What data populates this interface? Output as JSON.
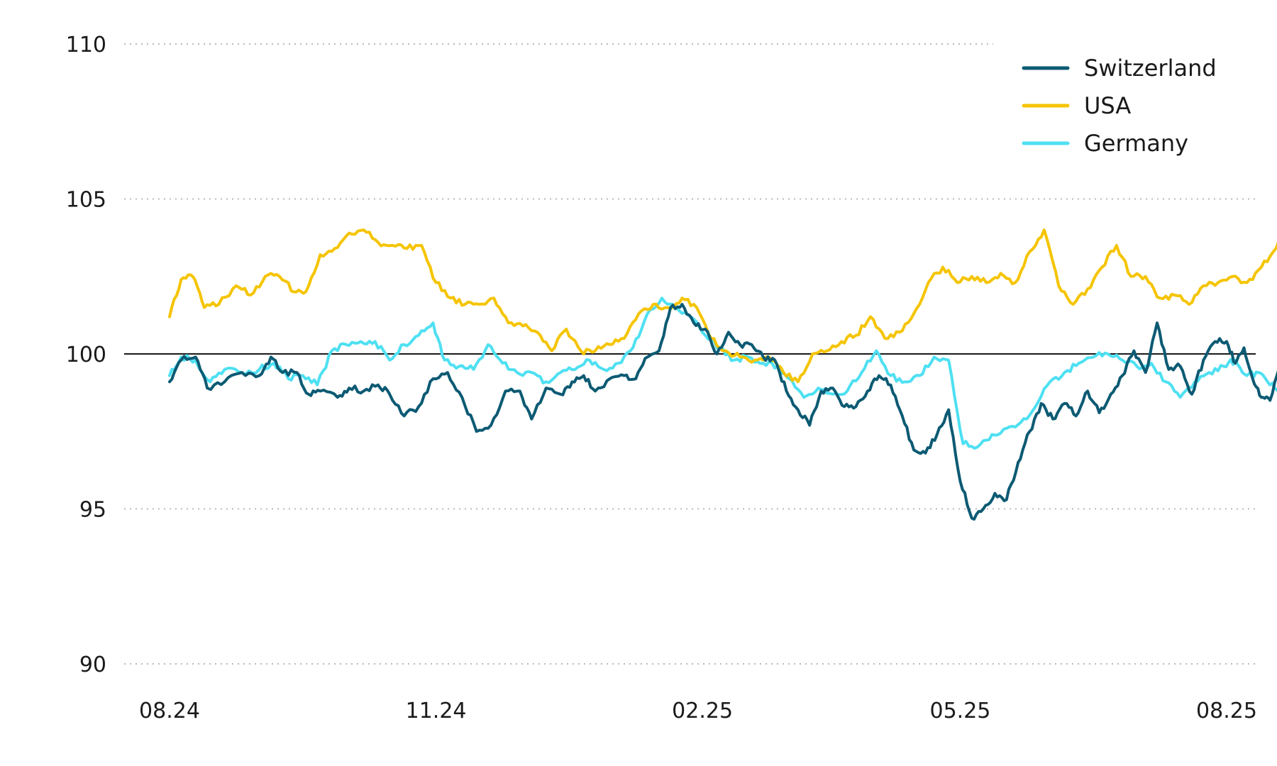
{
  "chart_data": {
    "type": "line",
    "title": "",
    "xlabel": "",
    "ylabel": "",
    "ylim": [
      90,
      110
    ],
    "yticks": [
      90,
      95,
      100,
      105,
      110
    ],
    "xlim": [
      "2024-08-01",
      "2025-08-20"
    ],
    "xticks": [
      {
        "label": "08.24",
        "date": "2024-08-01"
      },
      {
        "label": "11.24",
        "date": "2024-11-01"
      },
      {
        "label": "02.25",
        "date": "2025-02-01"
      },
      {
        "label": "05.25",
        "date": "2025-05-01"
      },
      {
        "label": "08.25",
        "date": "2025-08-01"
      }
    ],
    "reference_line": 100,
    "grid": "horizontal dotted",
    "legend": "top-right",
    "series": [
      {
        "name": "Switzerland",
        "color": "#0c5a73",
        "points": [
          [
            "2024-08-01",
            99.1
          ],
          [
            "2024-08-05",
            99.8
          ],
          [
            "2024-08-10",
            99.9
          ],
          [
            "2024-08-14",
            98.9
          ],
          [
            "2024-08-20",
            99.1
          ],
          [
            "2024-08-26",
            99.4
          ],
          [
            "2024-09-01",
            99.3
          ],
          [
            "2024-09-05",
            99.9
          ],
          [
            "2024-09-09",
            99.4
          ],
          [
            "2024-09-14",
            99.4
          ],
          [
            "2024-09-18",
            98.7
          ],
          [
            "2024-09-22",
            98.8
          ],
          [
            "2024-09-28",
            98.6
          ],
          [
            "2024-10-02",
            98.9
          ],
          [
            "2024-10-07",
            98.8
          ],
          [
            "2024-10-12",
            99.0
          ],
          [
            "2024-10-16",
            98.7
          ],
          [
            "2024-10-21",
            98.0
          ],
          [
            "2024-10-26",
            98.3
          ],
          [
            "2024-10-31",
            99.2
          ],
          [
            "2024-11-05",
            99.4
          ],
          [
            "2024-11-10",
            98.6
          ],
          [
            "2024-11-15",
            97.5
          ],
          [
            "2024-11-20",
            97.7
          ],
          [
            "2024-11-25",
            98.8
          ],
          [
            "2024-11-30",
            98.8
          ],
          [
            "2024-12-04",
            97.9
          ],
          [
            "2024-12-09",
            98.9
          ],
          [
            "2024-12-14",
            98.7
          ],
          [
            "2024-12-18",
            99.1
          ],
          [
            "2024-12-22",
            99.3
          ],
          [
            "2024-12-26",
            98.8
          ],
          [
            "2024-12-31",
            99.2
          ],
          [
            "2025-01-05",
            99.3
          ],
          [
            "2025-01-09",
            99.2
          ],
          [
            "2025-01-13",
            99.9
          ],
          [
            "2025-01-17",
            100.1
          ],
          [
            "2025-01-21",
            101.5
          ],
          [
            "2025-01-25",
            101.6
          ],
          [
            "2025-01-29",
            101.0
          ],
          [
            "2025-02-02",
            100.8
          ],
          [
            "2025-02-06",
            100.0
          ],
          [
            "2025-02-10",
            100.7
          ],
          [
            "2025-02-14",
            100.3
          ],
          [
            "2025-02-18",
            100.3
          ],
          [
            "2025-02-22",
            99.9
          ],
          [
            "2025-02-26",
            99.8
          ],
          [
            "2025-03-02",
            98.8
          ],
          [
            "2025-03-06",
            98.2
          ],
          [
            "2025-03-10",
            97.7
          ],
          [
            "2025-03-14",
            98.8
          ],
          [
            "2025-03-18",
            98.9
          ],
          [
            "2025-03-22",
            98.3
          ],
          [
            "2025-03-26",
            98.3
          ],
          [
            "2025-03-30",
            98.8
          ],
          [
            "2025-04-03",
            99.3
          ],
          [
            "2025-04-07",
            99.0
          ],
          [
            "2025-04-11",
            98.0
          ],
          [
            "2025-04-15",
            96.9
          ],
          [
            "2025-04-19",
            96.8
          ],
          [
            "2025-04-23",
            97.4
          ],
          [
            "2025-04-27",
            98.2
          ],
          [
            "2025-05-01",
            95.9
          ],
          [
            "2025-05-05",
            94.7
          ],
          [
            "2025-05-09",
            95.0
          ],
          [
            "2025-05-13",
            95.5
          ],
          [
            "2025-05-17",
            95.3
          ],
          [
            "2025-05-21",
            96.5
          ],
          [
            "2025-05-25",
            97.5
          ],
          [
            "2025-05-29",
            98.4
          ],
          [
            "2025-06-02",
            97.9
          ],
          [
            "2025-06-06",
            98.4
          ],
          [
            "2025-06-10",
            98.0
          ],
          [
            "2025-06-14",
            98.8
          ],
          [
            "2025-06-18",
            98.1
          ],
          [
            "2025-06-22",
            98.7
          ],
          [
            "2025-06-26",
            99.3
          ],
          [
            "2025-06-30",
            100.1
          ],
          [
            "2025-07-04",
            99.4
          ],
          [
            "2025-07-08",
            101.0
          ],
          [
            "2025-07-12",
            99.5
          ],
          [
            "2025-07-16",
            99.6
          ],
          [
            "2025-07-20",
            98.7
          ],
          [
            "2025-07-24",
            99.8
          ],
          [
            "2025-07-28",
            100.4
          ],
          [
            "2025-08-01",
            100.4
          ],
          [
            "2025-08-04",
            99.7
          ],
          [
            "2025-08-07",
            100.2
          ],
          [
            "2025-08-10",
            99.2
          ],
          [
            "2025-08-13",
            98.6
          ],
          [
            "2025-08-16",
            98.5
          ],
          [
            "2025-08-20",
            99.8
          ]
        ]
      },
      {
        "name": "USA",
        "color": "#f5c400",
        "points": [
          [
            "2024-08-01",
            101.2
          ],
          [
            "2024-08-05",
            102.4
          ],
          [
            "2024-08-09",
            102.5
          ],
          [
            "2024-08-13",
            101.5
          ],
          [
            "2024-08-18",
            101.6
          ],
          [
            "2024-08-24",
            102.2
          ],
          [
            "2024-08-29",
            101.9
          ],
          [
            "2024-09-03",
            102.5
          ],
          [
            "2024-09-08",
            102.5
          ],
          [
            "2024-09-13",
            102.0
          ],
          [
            "2024-09-17",
            102.0
          ],
          [
            "2024-09-22",
            103.2
          ],
          [
            "2024-09-27",
            103.4
          ],
          [
            "2024-10-02",
            103.9
          ],
          [
            "2024-10-07",
            104.0
          ],
          [
            "2024-10-12",
            103.6
          ],
          [
            "2024-10-17",
            103.5
          ],
          [
            "2024-10-22",
            103.4
          ],
          [
            "2024-10-27",
            103.5
          ],
          [
            "2024-11-01",
            102.3
          ],
          [
            "2024-11-06",
            101.8
          ],
          [
            "2024-11-11",
            101.6
          ],
          [
            "2024-11-16",
            101.6
          ],
          [
            "2024-11-21",
            101.8
          ],
          [
            "2024-11-26",
            101.0
          ],
          [
            "2024-12-01",
            100.9
          ],
          [
            "2024-12-06",
            100.7
          ],
          [
            "2024-12-11",
            100.1
          ],
          [
            "2024-12-16",
            100.8
          ],
          [
            "2024-12-21",
            100.1
          ],
          [
            "2024-12-26",
            100.1
          ],
          [
            "2024-12-31",
            100.3
          ],
          [
            "2025-01-05",
            100.5
          ],
          [
            "2025-01-10",
            101.3
          ],
          [
            "2025-01-15",
            101.6
          ],
          [
            "2025-01-20",
            101.5
          ],
          [
            "2025-01-25",
            101.8
          ],
          [
            "2025-01-30",
            101.5
          ],
          [
            "2025-02-04",
            100.5
          ],
          [
            "2025-02-09",
            100.1
          ],
          [
            "2025-02-14",
            99.9
          ],
          [
            "2025-02-19",
            99.8
          ],
          [
            "2025-02-24",
            99.9
          ],
          [
            "2025-03-01",
            99.4
          ],
          [
            "2025-03-06",
            99.1
          ],
          [
            "2025-03-11",
            100.0
          ],
          [
            "2025-03-16",
            100.1
          ],
          [
            "2025-03-21",
            100.4
          ],
          [
            "2025-03-26",
            100.6
          ],
          [
            "2025-03-31",
            101.2
          ],
          [
            "2025-04-05",
            100.5
          ],
          [
            "2025-04-10",
            100.7
          ],
          [
            "2025-04-15",
            101.3
          ],
          [
            "2025-04-20",
            102.3
          ],
          [
            "2025-04-25",
            102.8
          ],
          [
            "2025-04-30",
            102.3
          ],
          [
            "2025-05-05",
            102.5
          ],
          [
            "2025-05-10",
            102.3
          ],
          [
            "2025-05-15",
            102.6
          ],
          [
            "2025-05-20",
            102.3
          ],
          [
            "2025-05-25",
            103.3
          ],
          [
            "2025-05-30",
            104.0
          ],
          [
            "2025-06-04",
            102.2
          ],
          [
            "2025-06-09",
            101.6
          ],
          [
            "2025-06-14",
            102.1
          ],
          [
            "2025-06-19",
            102.8
          ],
          [
            "2025-06-24",
            103.5
          ],
          [
            "2025-06-29",
            102.5
          ],
          [
            "2025-07-04",
            102.5
          ],
          [
            "2025-07-09",
            101.8
          ],
          [
            "2025-07-14",
            101.9
          ],
          [
            "2025-07-19",
            101.6
          ],
          [
            "2025-07-24",
            102.2
          ],
          [
            "2025-07-29",
            102.3
          ],
          [
            "2025-08-03",
            102.5
          ],
          [
            "2025-08-08",
            102.3
          ],
          [
            "2025-08-13",
            102.8
          ],
          [
            "2025-08-18",
            103.4
          ],
          [
            "2025-08-20",
            104.1
          ]
        ]
      },
      {
        "name": "Germany",
        "color": "#4ee0f2",
        "points": [
          [
            "2024-08-01",
            99.3
          ],
          [
            "2024-08-05",
            99.9
          ],
          [
            "2024-08-10",
            99.8
          ],
          [
            "2024-08-15",
            99.1
          ],
          [
            "2024-08-20",
            99.5
          ],
          [
            "2024-08-26",
            99.4
          ],
          [
            "2024-09-01",
            99.5
          ],
          [
            "2024-09-06",
            99.7
          ],
          [
            "2024-09-11",
            99.2
          ],
          [
            "2024-09-16",
            99.3
          ],
          [
            "2024-09-21",
            99.0
          ],
          [
            "2024-09-26",
            100.1
          ],
          [
            "2024-10-01",
            100.3
          ],
          [
            "2024-10-06",
            100.4
          ],
          [
            "2024-10-11",
            100.4
          ],
          [
            "2024-10-16",
            99.8
          ],
          [
            "2024-10-21",
            100.3
          ],
          [
            "2024-10-26",
            100.6
          ],
          [
            "2024-10-31",
            101.0
          ],
          [
            "2024-11-04",
            99.8
          ],
          [
            "2024-11-09",
            99.6
          ],
          [
            "2024-11-14",
            99.5
          ],
          [
            "2024-11-19",
            100.3
          ],
          [
            "2024-11-24",
            99.7
          ],
          [
            "2024-11-29",
            99.4
          ],
          [
            "2024-12-04",
            99.4
          ],
          [
            "2024-12-09",
            99.1
          ],
          [
            "2024-12-14",
            99.4
          ],
          [
            "2024-12-19",
            99.5
          ],
          [
            "2024-12-24",
            99.8
          ],
          [
            "2024-12-29",
            99.5
          ],
          [
            "2025-01-03",
            99.7
          ],
          [
            "2025-01-08",
            100.2
          ],
          [
            "2025-01-13",
            101.3
          ],
          [
            "2025-01-18",
            101.8
          ],
          [
            "2025-01-23",
            101.5
          ],
          [
            "2025-01-28",
            101.2
          ],
          [
            "2025-02-02",
            100.6
          ],
          [
            "2025-02-07",
            100.2
          ],
          [
            "2025-02-12",
            99.8
          ],
          [
            "2025-02-17",
            99.9
          ],
          [
            "2025-02-22",
            99.7
          ],
          [
            "2025-02-27",
            99.6
          ],
          [
            "2025-03-03",
            99.2
          ],
          [
            "2025-03-08",
            98.6
          ],
          [
            "2025-03-13",
            98.9
          ],
          [
            "2025-03-18",
            98.7
          ],
          [
            "2025-03-23",
            98.8
          ],
          [
            "2025-03-28",
            99.4
          ],
          [
            "2025-04-02",
            100.1
          ],
          [
            "2025-04-07",
            99.3
          ],
          [
            "2025-04-12",
            99.1
          ],
          [
            "2025-04-17",
            99.3
          ],
          [
            "2025-04-22",
            99.9
          ],
          [
            "2025-04-27",
            99.8
          ],
          [
            "2025-05-02",
            97.1
          ],
          [
            "2025-05-07",
            97.0
          ],
          [
            "2025-05-12",
            97.4
          ],
          [
            "2025-05-17",
            97.6
          ],
          [
            "2025-05-22",
            97.8
          ],
          [
            "2025-05-27",
            98.3
          ],
          [
            "2025-06-01",
            99.1
          ],
          [
            "2025-06-06",
            99.4
          ],
          [
            "2025-06-11",
            99.7
          ],
          [
            "2025-06-16",
            99.9
          ],
          [
            "2025-06-21",
            100.0
          ],
          [
            "2025-06-26",
            99.8
          ],
          [
            "2025-07-01",
            99.6
          ],
          [
            "2025-07-06",
            99.7
          ],
          [
            "2025-07-11",
            99.1
          ],
          [
            "2025-07-16",
            98.6
          ],
          [
            "2025-07-21",
            99.1
          ],
          [
            "2025-07-26",
            99.4
          ],
          [
            "2025-07-31",
            99.6
          ],
          [
            "2025-08-04",
            99.8
          ],
          [
            "2025-08-08",
            99.3
          ],
          [
            "2025-08-12",
            99.4
          ],
          [
            "2025-08-16",
            99.0
          ],
          [
            "2025-08-20",
            98.8
          ]
        ]
      }
    ]
  }
}
